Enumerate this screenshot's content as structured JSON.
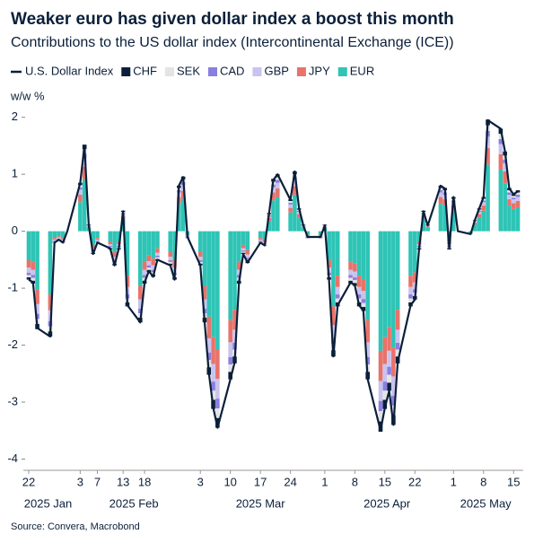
{
  "chart_data": {
    "type": "stacked_bar_line",
    "title": "Weaker euro has given dollar index a boost this month",
    "subtitle": "Contributions to the US dollar index (Intercontinental Exchange (ICE))",
    "y_label": "w/w %",
    "source": "Source: Convera, Macrobond",
    "x": [
      "2025-01-22",
      "2025-01-23",
      "2025-01-24",
      "2025-01-27",
      "2025-01-28",
      "2025-01-29",
      "2025-01-30",
      "2025-01-31",
      "2025-02-03",
      "2025-02-04",
      "2025-02-05",
      "2025-02-06",
      "2025-02-07",
      "2025-02-10",
      "2025-02-11",
      "2025-02-12",
      "2025-02-13",
      "2025-02-14",
      "2025-02-17",
      "2025-02-18",
      "2025-02-19",
      "2025-02-20",
      "2025-02-21",
      "2025-02-24",
      "2025-02-25",
      "2025-02-26",
      "2025-02-27",
      "2025-02-28",
      "2025-03-03",
      "2025-03-04",
      "2025-03-05",
      "2025-03-06",
      "2025-03-07",
      "2025-03-10",
      "2025-03-11",
      "2025-03-12",
      "2025-03-13",
      "2025-03-14",
      "2025-03-17",
      "2025-03-18",
      "2025-03-19",
      "2025-03-20",
      "2025-03-21",
      "2025-03-24",
      "2025-03-25",
      "2025-03-26",
      "2025-03-27",
      "2025-03-28",
      "2025-03-31",
      "2025-04-01",
      "2025-04-02",
      "2025-04-03",
      "2025-04-04",
      "2025-04-07",
      "2025-04-08",
      "2025-04-09",
      "2025-04-10",
      "2025-04-11",
      "2025-04-14",
      "2025-04-15",
      "2025-04-16",
      "2025-04-17",
      "2025-04-18",
      "2025-04-21",
      "2025-04-22",
      "2025-04-23",
      "2025-04-24",
      "2025-04-25",
      "2025-04-28",
      "2025-04-29",
      "2025-04-30",
      "2025-05-01",
      "2025-05-02",
      "2025-05-05",
      "2025-05-06",
      "2025-05-07",
      "2025-05-08",
      "2025-05-09",
      "2025-05-12",
      "2025-05-13",
      "2025-05-14",
      "2025-05-15",
      "2025-05-16"
    ],
    "line": {
      "name": "U.S. Dollar Index",
      "color": "#0b1f3a",
      "values": [
        -0.85,
        -0.9,
        -1.7,
        -1.85,
        -0.2,
        -0.15,
        -0.2,
        0.0,
        0.85,
        1.5,
        0.1,
        -0.4,
        -0.2,
        -0.3,
        -0.6,
        -0.3,
        0.35,
        -1.3,
        -1.6,
        -0.9,
        -0.7,
        -0.8,
        -0.5,
        -0.6,
        -0.85,
        0.8,
        0.95,
        -0.1,
        -0.6,
        -1.6,
        -2.5,
        -3.1,
        -3.45,
        -2.6,
        -2.3,
        -0.9,
        -0.4,
        -0.55,
        -0.2,
        -0.25,
        0.3,
        0.9,
        1.0,
        0.55,
        1.05,
        0.4,
        0.1,
        -0.1,
        -0.1,
        0.1,
        -0.85,
        -2.2,
        -1.3,
        -0.9,
        -0.95,
        -1.3,
        -1.4,
        -2.6,
        -3.5,
        -3.1,
        -2.8,
        -3.4,
        -2.3,
        -1.3,
        -1.2,
        -0.3,
        0.35,
        0.1,
        0.8,
        0.75,
        -0.3,
        0.6,
        0.0,
        -0.05,
        0.2,
        0.4,
        0.6,
        1.95,
        1.8,
        1.4,
        0.75,
        0.65,
        0.7
      ]
    },
    "series": [
      {
        "name": "EUR",
        "color": "#2ec4b6",
        "values": [
          -0.51,
          -0.54,
          -1.02,
          -1.11,
          -0.12,
          -0.09,
          -0.12,
          0,
          0.51,
          0.9,
          0.06,
          -0.24,
          -0.12,
          -0.18,
          -0.36,
          -0.18,
          0.21,
          -0.78,
          -0.96,
          -0.54,
          -0.42,
          -0.48,
          -0.3,
          -0.36,
          -0.51,
          0.48,
          0.57,
          -0.06,
          -0.36,
          -0.96,
          -1.5,
          -1.86,
          -2.07,
          -1.56,
          -1.38,
          -0.54,
          -0.24,
          -0.33,
          -0.12,
          -0.15,
          0.18,
          0.54,
          0.6,
          0.33,
          0.63,
          0.24,
          0.06,
          -0.06,
          -0.06,
          0.06,
          -0.51,
          -1.32,
          -0.78,
          -0.54,
          -0.57,
          -0.78,
          -0.84,
          -1.56,
          -2.1,
          -1.86,
          -1.68,
          -2.04,
          -1.38,
          -0.78,
          -0.72,
          -0.18,
          0.21,
          0.06,
          0.48,
          0.45,
          -0.18,
          0.36,
          0,
          -0.03,
          0.12,
          0.24,
          0.36,
          1.17,
          1.08,
          0.84,
          0.45,
          0.39,
          0.42
        ]
      },
      {
        "name": "JPY",
        "color": "#e8736a",
        "values": [
          -0.13,
          -0.14,
          -0.26,
          -0.28,
          -0.03,
          -0.02,
          -0.03,
          0,
          0.13,
          0.23,
          0.02,
          -0.06,
          -0.03,
          -0.05,
          -0.09,
          -0.05,
          0.05,
          -0.2,
          -0.24,
          -0.14,
          -0.11,
          -0.12,
          -0.08,
          -0.09,
          -0.13,
          0.12,
          0.14,
          -0.02,
          -0.09,
          -0.24,
          -0.38,
          -0.47,
          -0.52,
          -0.39,
          -0.35,
          -0.14,
          -0.06,
          -0.08,
          -0.03,
          -0.04,
          0.05,
          0.14,
          0.15,
          0.08,
          0.16,
          0.06,
          0.02,
          -0.02,
          -0.02,
          0.02,
          -0.13,
          -0.33,
          -0.2,
          -0.14,
          -0.14,
          -0.2,
          -0.21,
          -0.39,
          -0.53,
          -0.47,
          -0.42,
          -0.51,
          -0.35,
          -0.2,
          -0.18,
          -0.05,
          0.05,
          0.02,
          0.12,
          0.11,
          -0.05,
          0.09,
          0,
          -0.01,
          0.03,
          0.06,
          0.09,
          0.29,
          0.27,
          0.21,
          0.11,
          0.1,
          0.11
        ]
      },
      {
        "name": "GBP",
        "color": "#c9c3ee",
        "values": [
          -0.09,
          -0.09,
          -0.17,
          -0.19,
          -0.02,
          -0.02,
          -0.02,
          0,
          0.09,
          0.15,
          0.01,
          -0.04,
          -0.02,
          -0.03,
          -0.06,
          -0.03,
          0.04,
          -0.13,
          -0.16,
          -0.09,
          -0.07,
          -0.08,
          -0.05,
          -0.06,
          -0.09,
          0.08,
          0.1,
          -0.01,
          -0.06,
          -0.16,
          -0.25,
          -0.31,
          -0.35,
          -0.26,
          -0.23,
          -0.09,
          -0.04,
          -0.06,
          -0.02,
          -0.03,
          0.03,
          0.09,
          0.1,
          0.06,
          0.11,
          0.04,
          0.01,
          -0.01,
          -0.01,
          0.01,
          -0.09,
          -0.22,
          -0.13,
          -0.09,
          -0.1,
          -0.13,
          -0.14,
          -0.26,
          -0.35,
          -0.31,
          -0.28,
          -0.34,
          -0.23,
          -0.13,
          -0.12,
          -0.03,
          0.04,
          0.01,
          0.08,
          0.08,
          -0.03,
          0.06,
          0,
          -0.01,
          0.02,
          0.04,
          0.06,
          0.2,
          0.18,
          0.14,
          0.08,
          0.07,
          0.07
        ]
      },
      {
        "name": "CAD",
        "color": "#8a7fe0",
        "values": [
          -0.04,
          -0.05,
          -0.09,
          -0.09,
          -0.01,
          -0.01,
          -0.01,
          0,
          0.04,
          0.08,
          0.01,
          -0.02,
          -0.01,
          -0.02,
          -0.03,
          -0.02,
          0.02,
          -0.07,
          -0.08,
          -0.05,
          -0.04,
          -0.04,
          -0.03,
          -0.03,
          -0.04,
          0.04,
          0.05,
          -0.01,
          -0.03,
          -0.08,
          -0.13,
          -0.16,
          -0.17,
          -0.13,
          -0.12,
          -0.05,
          -0.02,
          -0.03,
          -0.01,
          -0.01,
          0.02,
          0.05,
          0.05,
          0.03,
          0.05,
          0.02,
          0.01,
          -0.01,
          -0.01,
          0.01,
          -0.04,
          -0.11,
          -0.07,
          -0.05,
          -0.05,
          -0.07,
          -0.07,
          -0.13,
          -0.18,
          -0.16,
          -0.14,
          -0.17,
          -0.12,
          -0.07,
          -0.06,
          -0.02,
          0.02,
          0.01,
          0.04,
          0.04,
          -0.02,
          0.03,
          0,
          0,
          0.01,
          0.02,
          0.03,
          0.1,
          0.09,
          0.07,
          0.04,
          0.03,
          0.04
        ]
      },
      {
        "name": "SEK",
        "color": "#e4e4e4",
        "values": [
          -0.04,
          -0.05,
          -0.09,
          -0.09,
          -0.01,
          -0.01,
          -0.01,
          0,
          0.04,
          0.08,
          0.01,
          -0.02,
          -0.01,
          -0.02,
          -0.03,
          -0.02,
          0.02,
          -0.07,
          -0.08,
          -0.05,
          -0.04,
          -0.04,
          -0.03,
          -0.03,
          -0.04,
          0.04,
          0.05,
          -0.01,
          -0.03,
          -0.08,
          -0.13,
          -0.16,
          -0.17,
          -0.13,
          -0.12,
          -0.05,
          -0.02,
          -0.03,
          -0.01,
          -0.01,
          0.02,
          0.05,
          0.05,
          0.03,
          0.05,
          0.02,
          0.01,
          -0.01,
          -0.01,
          0.01,
          -0.04,
          -0.11,
          -0.07,
          -0.05,
          -0.05,
          -0.07,
          -0.07,
          -0.13,
          -0.18,
          -0.16,
          -0.14,
          -0.17,
          -0.12,
          -0.07,
          -0.06,
          -0.02,
          0.02,
          0.01,
          0.04,
          0.04,
          -0.02,
          0.03,
          0,
          0,
          0.01,
          0.02,
          0.03,
          0.1,
          0.09,
          0.07,
          0.04,
          0.03,
          0.04
        ]
      },
      {
        "name": "CHF",
        "color": "#0b1f3a",
        "values": [
          -0.04,
          -0.05,
          -0.09,
          -0.09,
          -0.01,
          -0.01,
          -0.01,
          0,
          0.04,
          0.08,
          0.01,
          -0.02,
          -0.01,
          -0.02,
          -0.03,
          -0.02,
          0.02,
          -0.07,
          -0.08,
          -0.05,
          -0.04,
          -0.04,
          -0.03,
          -0.03,
          -0.04,
          0.04,
          0.05,
          -0.01,
          -0.03,
          -0.08,
          -0.13,
          -0.16,
          -0.17,
          -0.13,
          -0.12,
          -0.05,
          -0.02,
          -0.03,
          -0.01,
          -0.01,
          0.02,
          0.05,
          0.05,
          0.03,
          0.05,
          0.02,
          0.01,
          -0.01,
          -0.01,
          0.01,
          -0.04,
          -0.11,
          -0.07,
          -0.05,
          -0.05,
          -0.07,
          -0.07,
          -0.13,
          -0.18,
          -0.16,
          -0.14,
          -0.17,
          -0.12,
          -0.07,
          -0.06,
          -0.02,
          0.02,
          0.01,
          0.04,
          0.04,
          -0.02,
          0.03,
          0,
          0,
          0.01,
          0.02,
          0.03,
          0.1,
          0.09,
          0.07,
          0.04,
          0.03,
          0.04
        ]
      }
    ],
    "ylim": [
      -4.15,
      2.2
    ],
    "yticks": [
      2,
      1,
      0,
      -1,
      -2,
      -3,
      -4
    ],
    "xticks": [
      {
        "value": "2025-01-22",
        "label": "22"
      },
      {
        "value": "2025-02-03",
        "label": "3"
      },
      {
        "value": "2025-02-07",
        "label": "7"
      },
      {
        "value": "2025-02-13",
        "label": "13"
      },
      {
        "value": "2025-02-18",
        "label": "18"
      },
      {
        "value": "2025-03-03",
        "label": "3"
      },
      {
        "value": "2025-03-10",
        "label": "10"
      },
      {
        "value": "2025-03-17",
        "label": "17"
      },
      {
        "value": "2025-03-24",
        "label": "24"
      },
      {
        "value": "2025-04-01",
        "label": "1"
      },
      {
        "value": "2025-04-08",
        "label": "8"
      },
      {
        "value": "2025-04-15",
        "label": "15"
      },
      {
        "value": "2025-04-22",
        "label": "22"
      },
      {
        "value": "2025-05-01",
        "label": "1"
      },
      {
        "value": "2025-05-08",
        "label": "8"
      },
      {
        "value": "2025-05-15",
        "label": "15"
      }
    ],
    "month_labels": [
      "2025 Jan",
      "2025 Feb",
      "2025 Mar",
      "2025 Apr",
      "2025 May"
    ],
    "legend_order": [
      5,
      4,
      3,
      2,
      1,
      0
    ]
  }
}
